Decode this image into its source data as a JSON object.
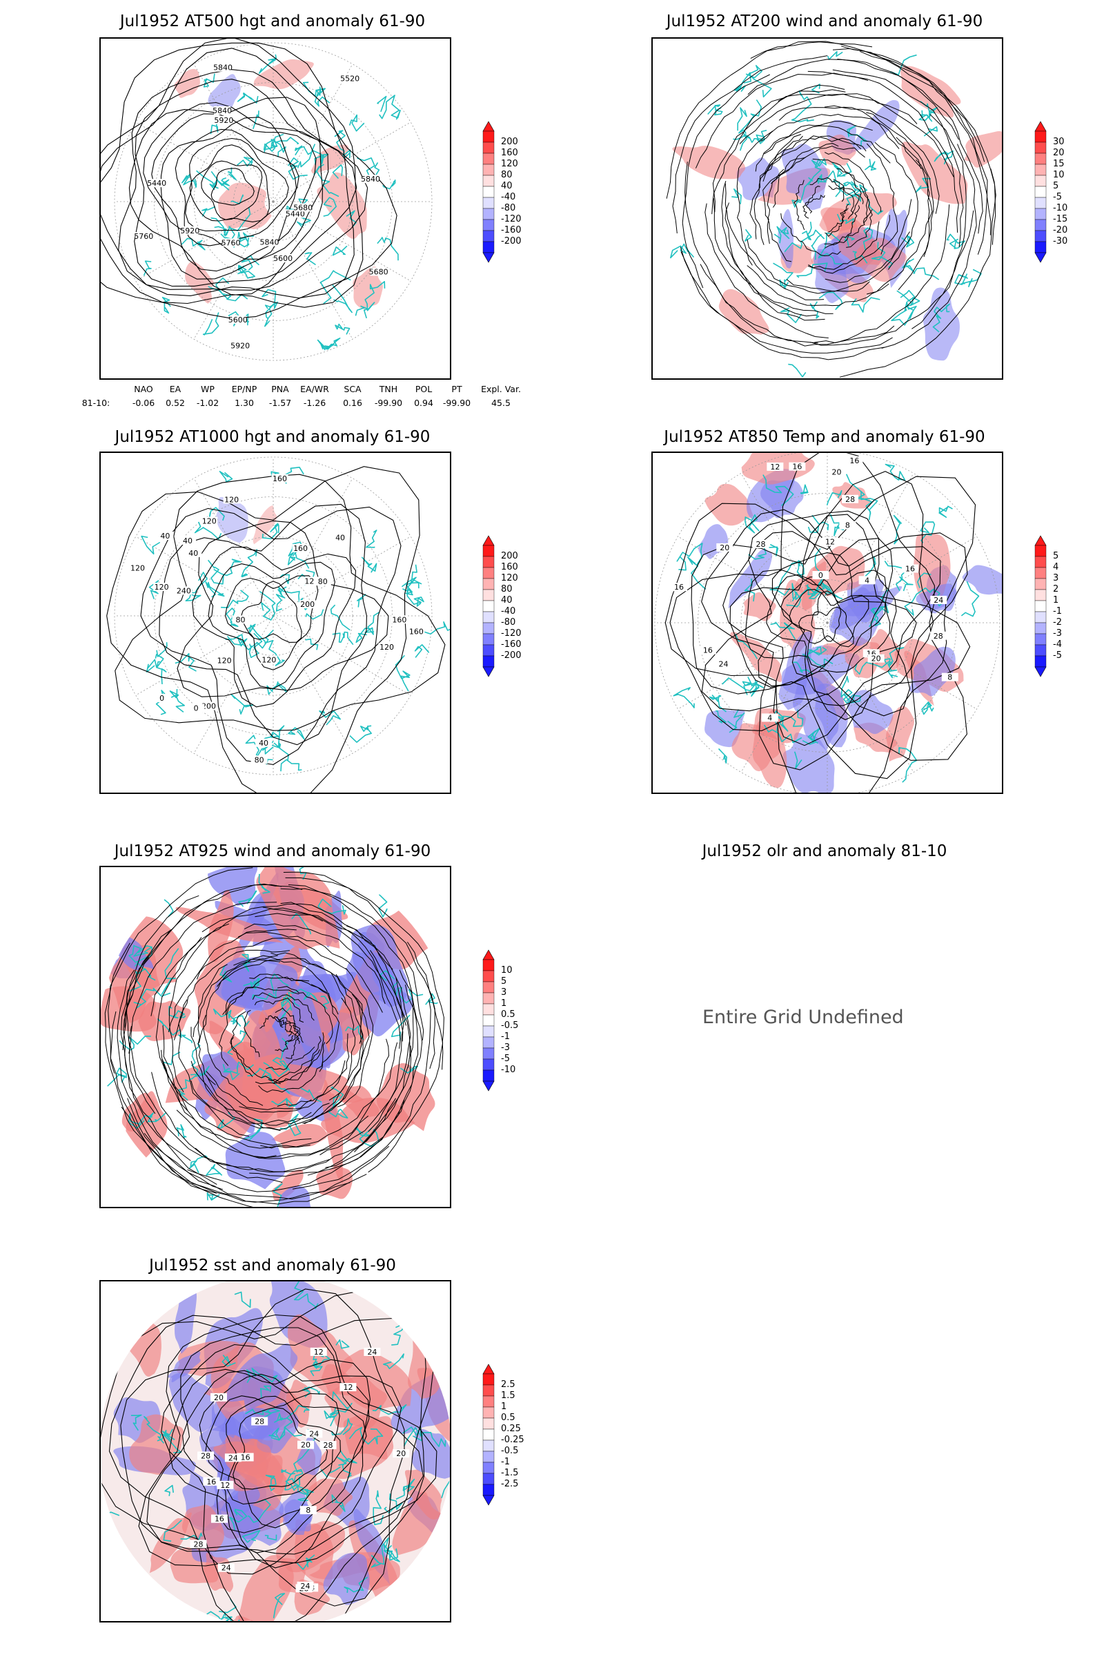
{
  "panels": {
    "p500": {
      "title": "Jul1952 AT500 hgt and anomaly 61-90"
    },
    "p200": {
      "title": "Jul1952 AT200 wind and anomaly 61-90"
    },
    "p1000": {
      "title": "Jul1952 AT1000 hgt and anomaly 61-90"
    },
    "p850": {
      "title": "Jul1952 AT850 Temp and anomaly 61-90"
    },
    "p925": {
      "title": "Jul1952 AT925 wind and anomaly 61-90"
    },
    "olr": {
      "title": "Jul1952 olr and anomaly 81-10",
      "message": "Entire Grid Undefined"
    },
    "sst": {
      "title": "Jul1952 sst and anomaly 61-90"
    }
  },
  "contour_labels": {
    "p500": [
      "5840",
      "5760",
      "5680",
      "5600",
      "5440",
      "5440",
      "5520",
      "5840",
      "5920",
      "5920",
      "5600",
      "5680",
      "5760",
      "5840",
      "5920",
      "5840"
    ],
    "p1000": [
      "120",
      "160",
      "240",
      "160",
      "120",
      "200",
      "120",
      "120",
      "160",
      "40",
      "40",
      "80",
      "0",
      "40",
      "120",
      "200",
      "160",
      "80",
      "40",
      "0",
      "80",
      "120",
      "40",
      "120",
      "120"
    ],
    "p850": [
      "16",
      "16",
      "12",
      "8",
      "4",
      "24",
      "20",
      "8",
      "4",
      "0",
      "12",
      "28",
      "28",
      "16",
      "20",
      "24",
      "20",
      "28",
      "16",
      "16",
      "16"
    ],
    "sst": [
      "28",
      "28",
      "24",
      "28",
      "24",
      "20",
      "16",
      "12",
      "24",
      "20",
      "16",
      "12",
      "8",
      "28",
      "28",
      "16",
      "12",
      "20",
      "24",
      "28",
      "24"
    ]
  },
  "legends": {
    "hgt": [
      "200",
      "160",
      "120",
      "80",
      "40",
      "-40",
      "-80",
      "-120",
      "-160",
      "-200"
    ],
    "w200": [
      "30",
      "20",
      "15",
      "10",
      "5",
      "-5",
      "-10",
      "-15",
      "-20",
      "-30"
    ],
    "t850": [
      "5",
      "4",
      "3",
      "2",
      "1",
      "-1",
      "-2",
      "-3",
      "-4",
      "-5"
    ],
    "w925": [
      "10",
      "5",
      "3",
      "1",
      "0.5",
      "-0.5",
      "-1",
      "-3",
      "-5",
      "-10"
    ],
    "sst": [
      "2.5",
      "1.5",
      "1",
      "0.5",
      "0.25",
      "-0.25",
      "-0.5",
      "-1",
      "-1.5",
      "-2.5"
    ]
  },
  "colors": {
    "legend_ramp": [
      "#ff1a1a",
      "#ff4d4d",
      "#ff8080",
      "#ffb3b3",
      "#ffe0e0",
      "#ffffff",
      "#e0e0ff",
      "#b3b3ff",
      "#8080ff",
      "#4d4dff",
      "#1a1aff"
    ],
    "coast": "#20c0c0",
    "anom_pos": "#f08080",
    "anom_neg": "#8080f0"
  },
  "indices": {
    "headers": [
      "NAO",
      "EA",
      "WP",
      "EP/NP",
      "PNA",
      "EA/WR",
      "SCA",
      "TNH",
      "POL",
      "PT",
      "Expl. Var."
    ],
    "row_label": "81-10:",
    "values": [
      "-0.06",
      "0.52",
      "-1.02",
      "1.30",
      "-1.57",
      "-1.26",
      "0.16",
      "-99.90",
      "0.94",
      "-99.90",
      "45.5"
    ]
  }
}
